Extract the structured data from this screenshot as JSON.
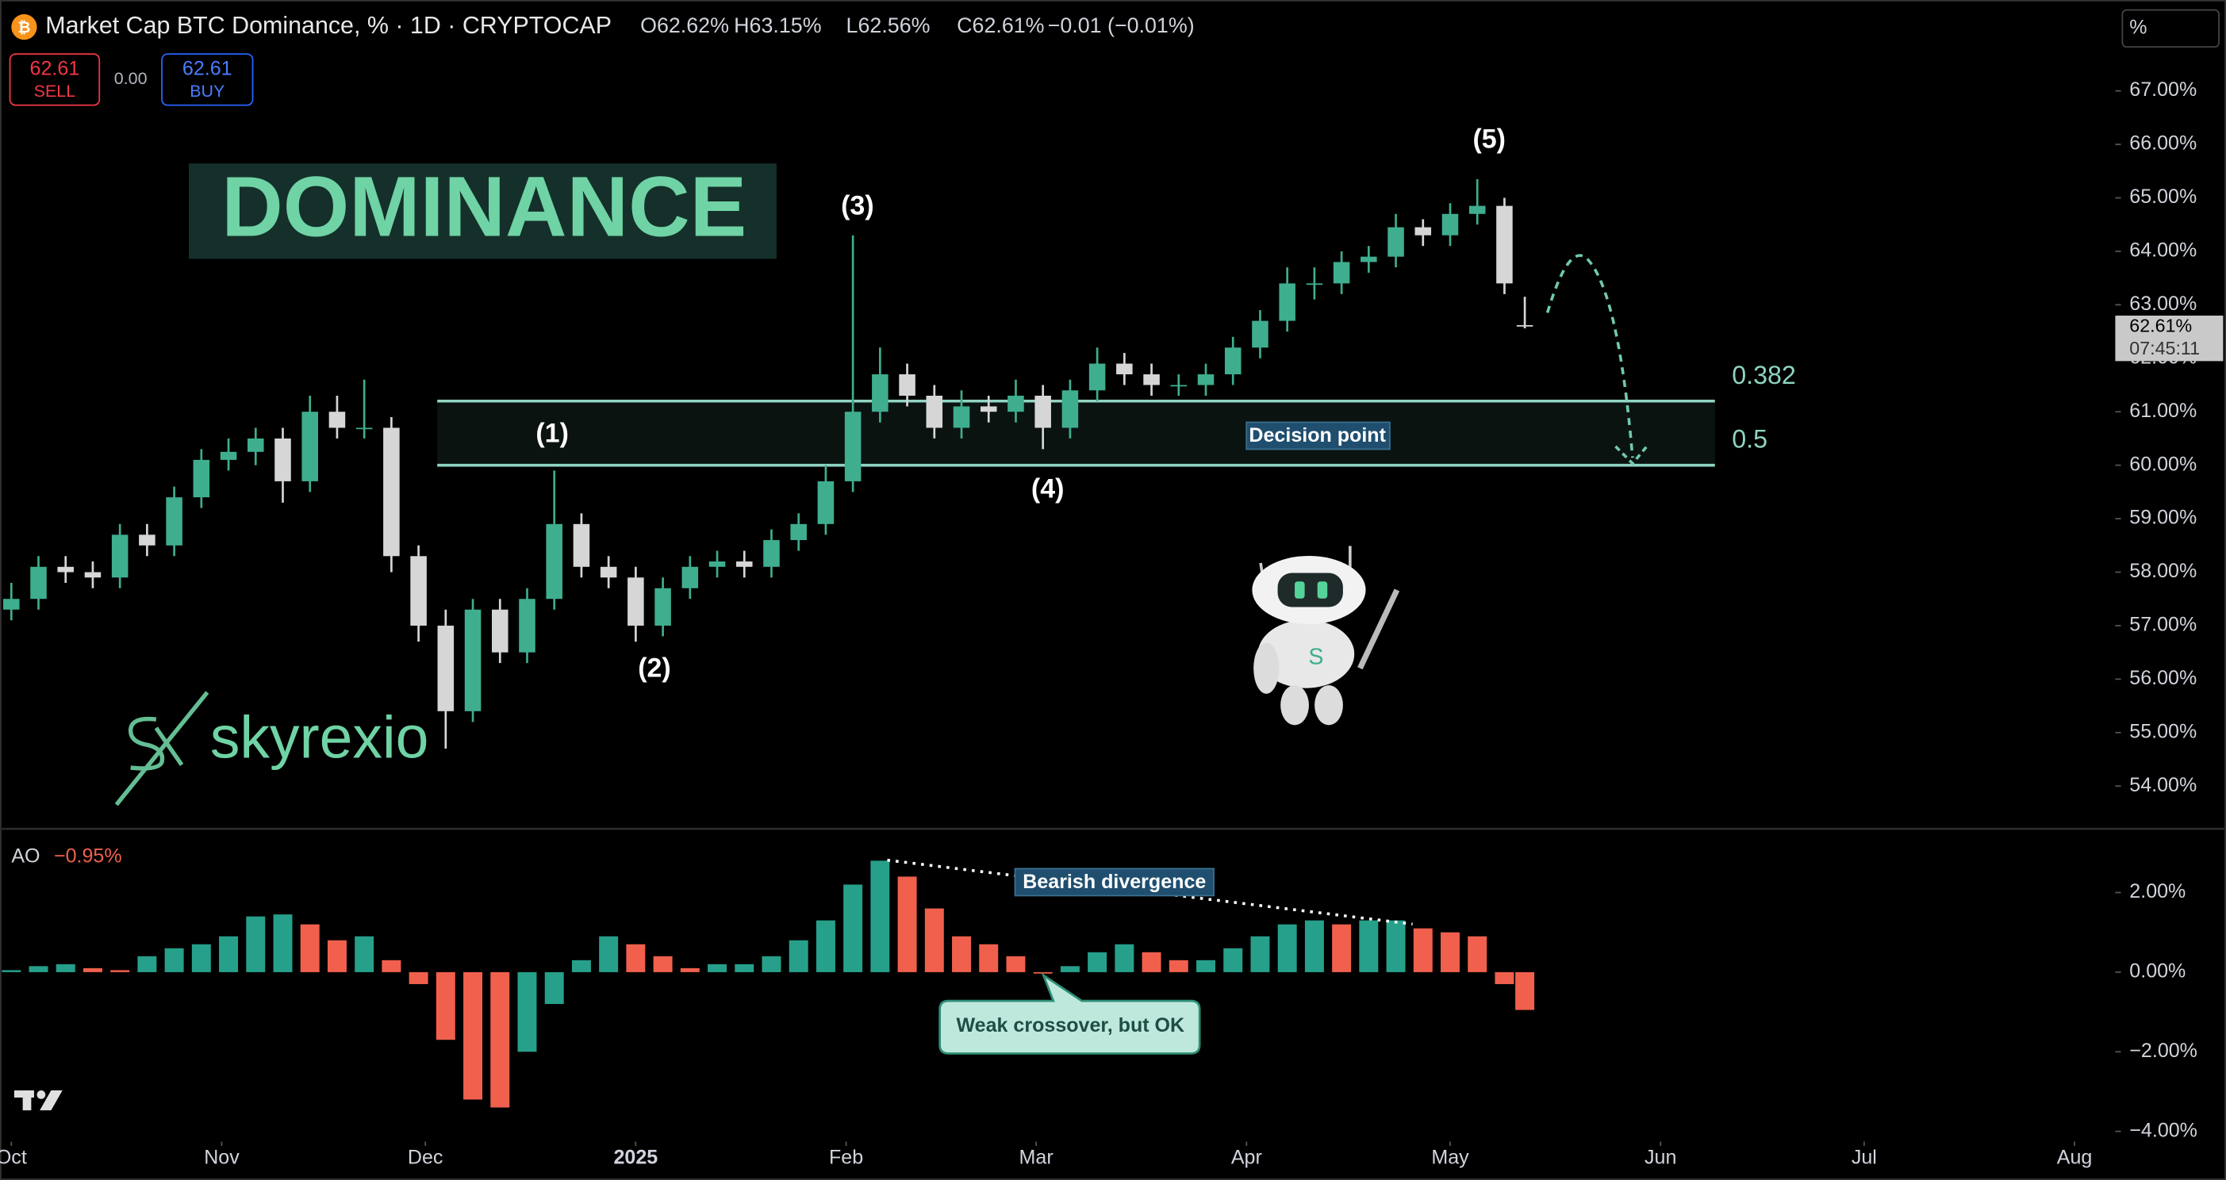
{
  "header": {
    "symbol_title": "Market Cap BTC Dominance, % · 1D · CRYPTOCAP",
    "ohlc": [
      "O62.62%",
      "H63.15%",
      "L62.56%",
      "C62.61%",
      "−0.01 (−0.01%)"
    ],
    "sell_price": "62.61",
    "sell": "SELL",
    "spread": "0.00",
    "buy_price": "62.61",
    "buy": "BUY",
    "scale_button": "%"
  },
  "watermark": "skyrexio",
  "chart_data": [
    {
      "type": "candlestick",
      "title": "DOMINANCE",
      "x": [
        0,
        4,
        8,
        12,
        16,
        20,
        24,
        28,
        32,
        36,
        40,
        44,
        48,
        52,
        56,
        60,
        64,
        68,
        72,
        76,
        80,
        84,
        88,
        92,
        96,
        100,
        104,
        108,
        112,
        116,
        120,
        124,
        128,
        132,
        136,
        140,
        144,
        148,
        152,
        156,
        160,
        164,
        168,
        172,
        176,
        180,
        184,
        188,
        192,
        196,
        200,
        204,
        208,
        212,
        216,
        220,
        223
      ],
      "open": [
        57.3,
        57.5,
        58.1,
        58.0,
        57.9,
        58.7,
        58.5,
        59.4,
        60.1,
        60.25,
        60.5,
        59.7,
        61.0,
        60.7,
        60.7,
        58.3,
        57.0,
        55.4,
        57.3,
        56.5,
        57.5,
        58.9,
        58.1,
        57.9,
        57.0,
        57.7,
        58.1,
        58.2,
        58.1,
        58.6,
        58.9,
        59.7,
        61.0,
        61.7,
        61.3,
        60.7,
        61.1,
        61.0,
        61.3,
        60.7,
        61.4,
        61.9,
        61.7,
        61.5,
        61.5,
        61.7,
        62.2,
        62.7,
        63.4,
        63.4,
        63.8,
        63.9,
        64.45,
        64.3,
        64.7,
        64.85,
        62.62
      ],
      "high": [
        57.8,
        58.3,
        58.3,
        58.2,
        58.9,
        58.9,
        59.6,
        60.3,
        60.5,
        60.7,
        60.7,
        61.3,
        61.3,
        61.6,
        60.9,
        58.5,
        57.3,
        57.5,
        57.5,
        57.7,
        59.9,
        59.1,
        58.3,
        58.1,
        57.9,
        58.3,
        58.4,
        58.4,
        58.8,
        59.1,
        60.0,
        64.3,
        62.2,
        61.9,
        61.5,
        61.4,
        61.3,
        61.6,
        61.5,
        61.6,
        62.2,
        62.1,
        61.9,
        61.7,
        61.9,
        62.4,
        62.9,
        63.7,
        63.7,
        64.0,
        64.1,
        64.7,
        64.6,
        64.9,
        65.35,
        65.0,
        63.15
      ],
      "low": [
        57.1,
        57.3,
        57.8,
        57.7,
        57.7,
        58.3,
        58.3,
        59.2,
        59.9,
        60.0,
        59.3,
        59.5,
        60.5,
        60.5,
        58.0,
        56.7,
        54.7,
        55.2,
        56.3,
        56.3,
        57.3,
        57.9,
        57.7,
        56.7,
        56.8,
        57.5,
        57.9,
        57.9,
        57.9,
        58.4,
        58.7,
        59.5,
        60.8,
        61.1,
        60.5,
        60.5,
        60.8,
        60.8,
        60.3,
        60.5,
        61.2,
        61.5,
        61.3,
        61.3,
        61.3,
        61.5,
        62.0,
        62.5,
        63.1,
        63.2,
        63.6,
        63.7,
        64.1,
        64.1,
        64.5,
        63.2,
        62.56
      ],
      "close": [
        57.5,
        58.1,
        58.0,
        57.9,
        58.7,
        58.5,
        59.4,
        60.1,
        60.25,
        60.5,
        59.7,
        61.0,
        60.7,
        60.7,
        58.3,
        57.0,
        55.4,
        57.3,
        56.5,
        57.5,
        58.9,
        58.1,
        57.9,
        57.0,
        57.7,
        58.1,
        58.2,
        58.1,
        58.6,
        58.9,
        59.7,
        61.0,
        61.7,
        61.3,
        60.7,
        61.1,
        61.0,
        61.3,
        60.7,
        61.4,
        61.9,
        61.7,
        61.5,
        61.5,
        61.7,
        62.2,
        62.7,
        63.4,
        63.4,
        63.8,
        63.9,
        64.45,
        64.3,
        64.7,
        64.85,
        63.4,
        62.61
      ],
      "up_color": "#3fae8e",
      "down_color": "#d6d6d6",
      "xlim": [
        -1.67,
        310
      ],
      "xticks": [
        {
          "value": 0,
          "label": "Oct"
        },
        {
          "value": 31,
          "label": "Nov"
        },
        {
          "value": 61,
          "label": "Dec"
        },
        {
          "value": 92,
          "label": "2025"
        },
        {
          "value": 123,
          "label": "Feb"
        },
        {
          "value": 151,
          "label": "Mar"
        },
        {
          "value": 182,
          "label": "Apr"
        },
        {
          "value": 212,
          "label": "May"
        },
        {
          "value": 243,
          "label": "Jun"
        },
        {
          "value": 273,
          "label": "Jul"
        },
        {
          "value": 304,
          "label": "Aug"
        }
      ],
      "ylim": [
        53.2,
        68.7
      ],
      "yticks": [
        {
          "value": 54,
          "label": "54.00%"
        },
        {
          "value": 55,
          "label": "55.00%"
        },
        {
          "value": 56,
          "label": "56.00%"
        },
        {
          "value": 57,
          "label": "57.00%"
        },
        {
          "value": 58,
          "label": "58.00%"
        },
        {
          "value": 59,
          "label": "59.00%"
        },
        {
          "value": 60,
          "label": "60.00%"
        },
        {
          "value": 61,
          "label": "61.00%"
        },
        {
          "value": 62,
          "label": "62.00%"
        },
        {
          "value": 63,
          "label": "63.00%"
        },
        {
          "value": 64,
          "label": "64.00%"
        },
        {
          "value": 65,
          "label": "65.00%"
        },
        {
          "value": 66,
          "label": "66.00%"
        },
        {
          "value": 67,
          "label": "67.00%"
        }
      ],
      "last_price_label": "62.61%",
      "countdown": "07:45:11",
      "levels": [
        {
          "label": "0.382",
          "value": 61.2
        },
        {
          "label": "0.5",
          "value": 60.0
        }
      ],
      "annotations": [
        "(1)",
        "(2)",
        "(3)",
        "(4)",
        "(5)",
        "Decision point"
      ]
    },
    {
      "type": "bar",
      "name": "AO",
      "value_label": "−0.95%",
      "x": [
        0,
        4,
        8,
        12,
        16,
        20,
        24,
        28,
        32,
        36,
        40,
        44,
        48,
        52,
        56,
        60,
        64,
        68,
        72,
        76,
        80,
        84,
        88,
        92,
        96,
        100,
        104,
        108,
        112,
        116,
        120,
        124,
        128,
        132,
        136,
        140,
        144,
        148,
        152,
        156,
        160,
        164,
        168,
        172,
        176,
        180,
        184,
        188,
        192,
        196,
        200,
        204,
        208,
        212,
        216,
        220,
        223
      ],
      "values": [
        0.05,
        0.15,
        0.2,
        0.1,
        0.05,
        0.4,
        0.6,
        0.7,
        0.9,
        1.4,
        1.45,
        1.2,
        0.8,
        0.9,
        0.3,
        -0.3,
        -1.7,
        -3.2,
        -3.4,
        -2.0,
        -0.8,
        0.3,
        0.9,
        0.7,
        0.4,
        0.1,
        0.2,
        0.2,
        0.4,
        0.8,
        1.3,
        2.2,
        2.8,
        2.4,
        1.6,
        0.9,
        0.7,
        0.4,
        0.0,
        0.15,
        0.5,
        0.7,
        0.5,
        0.3,
        0.3,
        0.6,
        0.9,
        1.2,
        1.3,
        1.2,
        1.3,
        1.3,
        1.1,
        1.0,
        0.9,
        -0.3,
        -0.95
      ],
      "up_color": "#26a08a",
      "down_color": "#f0604d",
      "ylim": [
        -4.15,
        3.35
      ],
      "yticks": [
        {
          "value": 2,
          "label": "2.00%"
        },
        {
          "value": 0,
          "label": "0.00%"
        },
        {
          "value": -2,
          "label": "−2.00%"
        },
        {
          "value": -4,
          "label": "−4.00%"
        }
      ],
      "annotations": [
        "Bearish divergence",
        "Weak crossover, but OK"
      ]
    }
  ]
}
